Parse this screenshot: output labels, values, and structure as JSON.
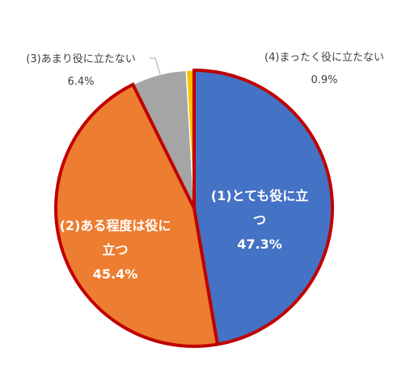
{
  "chart_data": {
    "type": "pie",
    "categories": [
      "(1)とても役に立つ",
      "(2)ある程度は役に立つ",
      "(3)あまり役に立たない",
      "(4)まったく役に立たない"
    ],
    "values": [
      47.3,
      45.4,
      6.4,
      0.9
    ],
    "value_labels": [
      "47.3%",
      "45.4%",
      "6.4%",
      "0.9%"
    ],
    "colors": [
      "#4472c4",
      "#ed7d31",
      "#a5a5a5",
      "#ffc000"
    ],
    "outline_color": "#c00000"
  }
}
